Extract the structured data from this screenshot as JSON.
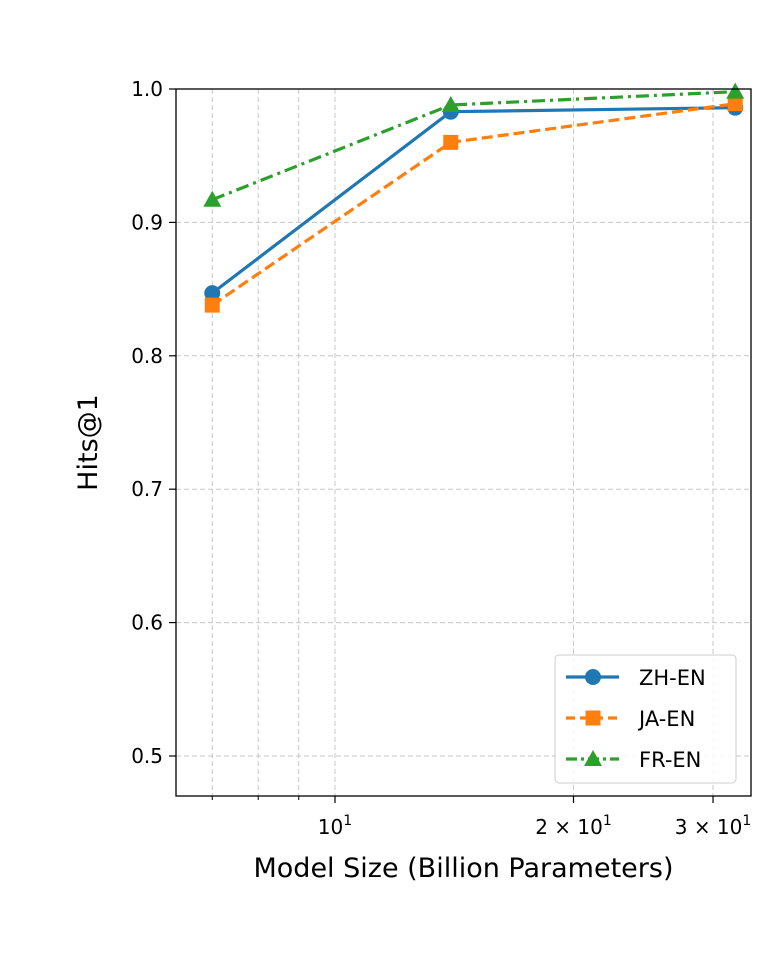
{
  "chart_data": {
    "type": "line",
    "title": "",
    "xlabel": "Model Size (Billion Parameters)",
    "ylabel": "Hits@1",
    "xscale": "log",
    "xlim": [
      6.3,
      33.5
    ],
    "ylim": [
      0.47,
      1.0
    ],
    "x": [
      7,
      14,
      32
    ],
    "grid": true,
    "yticks": [
      0.5,
      0.6,
      0.7,
      0.8,
      0.9,
      1.0
    ],
    "ytick_labels": [
      "0.5",
      "0.6",
      "0.7",
      "0.8",
      "0.9",
      "1.0"
    ],
    "xticks_major": [
      {
        "value": 10,
        "label_base": "10",
        "label_exp": "1",
        "label_coef": ""
      },
      {
        "value": 20,
        "label_base": "10",
        "label_exp": "1",
        "label_coef": "2 × "
      },
      {
        "value": 30,
        "label_base": "10",
        "label_exp": "1",
        "label_coef": "3 × "
      }
    ],
    "xticks_minor": [
      7,
      8,
      9
    ],
    "legend_position": "lower-right",
    "series": [
      {
        "name": "ZH-EN",
        "values": [
          0.847,
          0.983,
          0.986
        ],
        "color": "#1f77b4",
        "linestyle": "solid",
        "marker": "circle"
      },
      {
        "name": "JA-EN",
        "values": [
          0.838,
          0.96,
          0.989
        ],
        "color": "#ff7f0e",
        "linestyle": "dashed",
        "marker": "square"
      },
      {
        "name": "FR-EN",
        "values": [
          0.917,
          0.988,
          0.998
        ],
        "color": "#2ca02c",
        "linestyle": "dashdot",
        "marker": "triangle"
      }
    ]
  }
}
